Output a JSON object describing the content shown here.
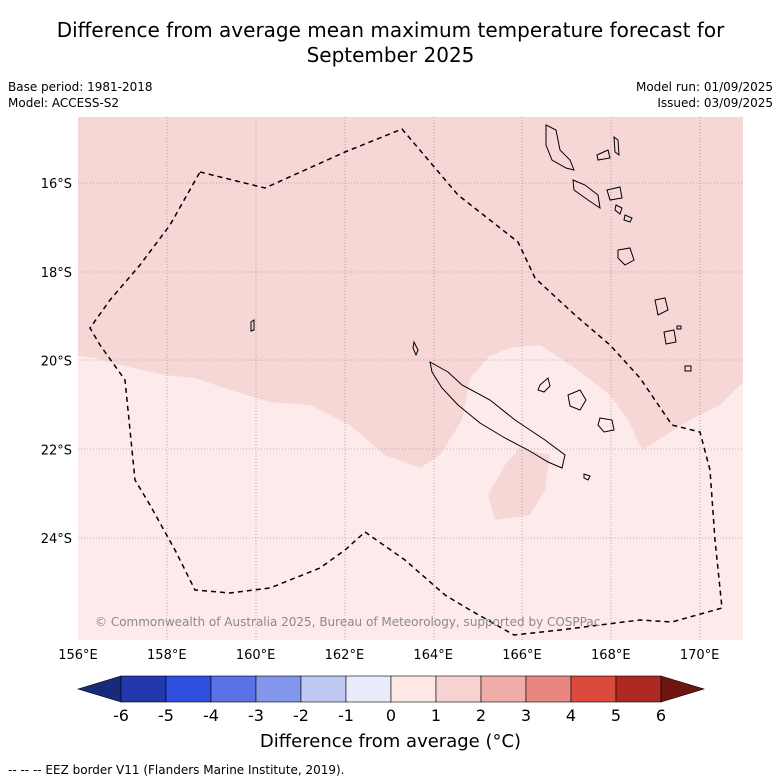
{
  "title_line1": "Difference from average mean maximum temperature forecast for",
  "title_line2": "September 2025",
  "base_period": "Base period: 1981-2018",
  "model": "Model: ACCESS-S2",
  "model_run": "Model run: 01/09/2025",
  "issued": "Issued: 03/09/2025",
  "copyright": "© Commonwealth of Australia 2025, Bureau of Meteorology, supported by COSPPac",
  "lon_labels": [
    "156°E",
    "158°E",
    "160°E",
    "162°E",
    "164°E",
    "166°E",
    "168°E",
    "170°E"
  ],
  "lat_labels": [
    "16°S",
    "18°S",
    "20°S",
    "22°S",
    "24°S"
  ],
  "colorbar": {
    "title": "Difference from average (°C)",
    "ticks": [
      "-6",
      "-5",
      "-4",
      "-3",
      "-2",
      "-1",
      "0",
      "1",
      "2",
      "3",
      "4",
      "5",
      "6"
    ],
    "colors": [
      "#1a2a7a",
      "#2438ae",
      "#2f4fe0",
      "#5a72e6",
      "#8296ec",
      "#c0c8f4",
      "#e8ecfa",
      "#fde8e6",
      "#f7d2d0",
      "#f0aca8",
      "#e8877f",
      "#dc4a3e",
      "#ad2822",
      "#6e1512"
    ]
  },
  "fill_colors": {
    "band_0_1": "#fcebea",
    "band_1_2": "#f6d7d6"
  },
  "footer": "--  --  -- EEZ border V11 (Flanders Marine Institute, 2019)."
}
